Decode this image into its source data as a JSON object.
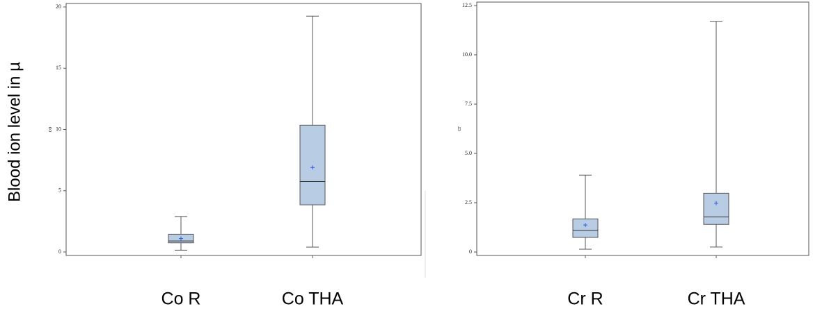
{
  "ylabel": "Blood ion level in µ",
  "chart_data": [
    {
      "type": "box",
      "ylabel": "co",
      "categories": [
        "Co R",
        "Co THA"
      ],
      "ylim": [
        0,
        20
      ],
      "yticks": [
        0,
        5,
        10,
        15,
        20
      ],
      "color": "#b8cce4",
      "mean_color": "#3355dd",
      "boxes": [
        {
          "min": 0.15,
          "q1": 0.75,
          "median": 0.9,
          "q3": 1.45,
          "max": 2.9,
          "mean": 1.1
        },
        {
          "min": 0.4,
          "q1": 3.85,
          "median": 5.75,
          "q3": 10.35,
          "max": 19.25,
          "mean": 6.9
        }
      ]
    },
    {
      "type": "box",
      "ylabel": "cr",
      "categories": [
        "Cr R",
        "Cr THA"
      ],
      "ylim": [
        0,
        12.5
      ],
      "yticks": [
        0,
        2.5,
        {
          "value": 5,
          "label": "5.0"
        },
        7.5,
        {
          "value": 10,
          "label": "10.0"
        },
        12.5
      ],
      "color": "#b8cce4",
      "mean_color": "#3355dd",
      "boxes": [
        {
          "min": 0.14,
          "q1": 0.74,
          "median": 1.1,
          "q3": 1.68,
          "max": 3.9,
          "mean": 1.37
        },
        {
          "min": 0.25,
          "q1": 1.4,
          "median": 1.78,
          "q3": 2.98,
          "max": 11.7,
          "mean": 2.48
        }
      ]
    }
  ]
}
